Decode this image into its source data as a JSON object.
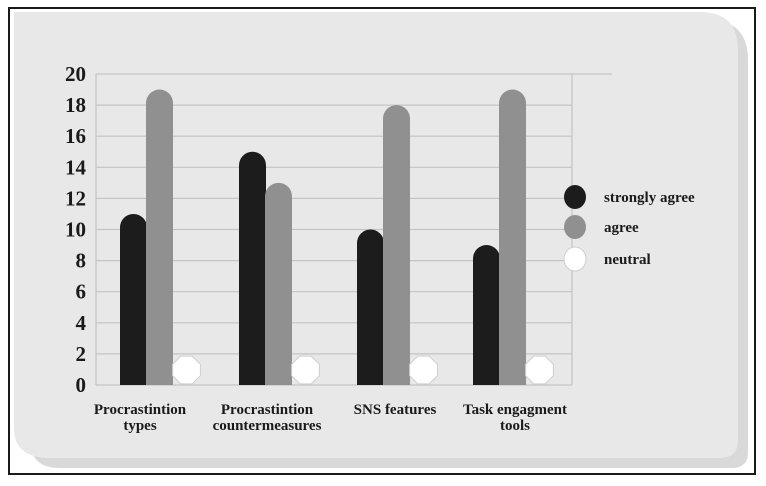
{
  "chart_data": {
    "type": "bar",
    "title": "",
    "xlabel": "",
    "ylabel": "",
    "ylim": [
      0,
      20
    ],
    "yticks": [
      0,
      2,
      4,
      6,
      8,
      10,
      12,
      14,
      16,
      18,
      20
    ],
    "grid": true,
    "legend_position": "right",
    "categories": [
      [
        "Procrastintion",
        "types"
      ],
      [
        "Procrastintion",
        "countermeasures"
      ],
      [
        "SNS features"
      ],
      [
        "Task engagment",
        "tools"
      ]
    ],
    "series": [
      {
        "name": "strongly agree",
        "color": "#1c1c1c",
        "values": [
          11,
          15,
          10,
          9
        ]
      },
      {
        "name": "agree",
        "color": "#909090",
        "values": [
          19,
          13,
          18,
          19
        ]
      },
      {
        "name": "neutral",
        "color": "#ffffff",
        "values": [
          0,
          0,
          0,
          0
        ]
      }
    ]
  }
}
